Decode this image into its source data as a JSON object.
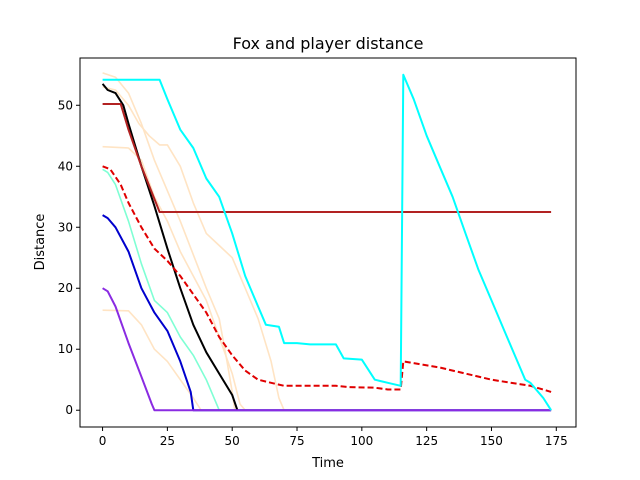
{
  "chart_data": {
    "type": "line",
    "title": "Fox and player distance",
    "xlabel": "Time",
    "ylabel": "Distance",
    "xlim": [
      -8.7,
      182.6
    ],
    "ylim": [
      -2.75,
      57.75
    ],
    "xticks": [
      0,
      25,
      50,
      75,
      100,
      125,
      150,
      175
    ],
    "yticks": [
      0,
      10,
      20,
      30,
      40,
      50
    ],
    "grid": false,
    "legend": "none",
    "series": [
      {
        "name": "bisque-1",
        "color": "#ffe4c4",
        "style": "solid",
        "points": [
          [
            0,
            55.3
          ],
          [
            5,
            54.6
          ],
          [
            10,
            52
          ],
          [
            15,
            47
          ],
          [
            20,
            41
          ],
          [
            30,
            31
          ],
          [
            40,
            20
          ],
          [
            45,
            15
          ],
          [
            48,
            8
          ],
          [
            50,
            3
          ],
          [
            51,
            0
          ],
          [
            173,
            0
          ]
        ]
      },
      {
        "name": "bisque-2",
        "color": "#ffe4c4",
        "style": "solid",
        "points": [
          [
            0,
            53
          ],
          [
            5,
            52.5
          ],
          [
            10,
            50
          ],
          [
            14,
            47
          ],
          [
            18,
            45
          ],
          [
            22,
            43.5
          ],
          [
            25,
            43.5
          ],
          [
            30,
            40
          ],
          [
            35,
            34
          ],
          [
            40,
            29
          ],
          [
            45,
            27
          ],
          [
            50,
            25
          ],
          [
            55,
            20
          ],
          [
            60,
            15
          ],
          [
            65,
            8
          ],
          [
            68,
            2
          ],
          [
            70,
            0
          ],
          [
            173,
            0
          ]
        ]
      },
      {
        "name": "bisque-3",
        "color": "#ffe4c4",
        "style": "solid",
        "points": [
          [
            0,
            43.2
          ],
          [
            10,
            43
          ],
          [
            15,
            41
          ],
          [
            20,
            35
          ],
          [
            25,
            31
          ],
          [
            30,
            26
          ],
          [
            35,
            22
          ],
          [
            40,
            18
          ],
          [
            45,
            12
          ],
          [
            50,
            6
          ],
          [
            53,
            1
          ],
          [
            55,
            0
          ],
          [
            173,
            0
          ]
        ]
      },
      {
        "name": "bisque-4",
        "color": "#ffe4c4",
        "style": "solid",
        "points": [
          [
            0,
            16.4
          ],
          [
            10,
            16.3
          ],
          [
            15,
            14
          ],
          [
            20,
            10
          ],
          [
            25,
            8
          ],
          [
            30,
            5
          ],
          [
            35,
            2
          ],
          [
            38,
            0
          ],
          [
            173,
            0
          ]
        ]
      },
      {
        "name": "aquamarine",
        "color": "#7fffd4",
        "style": "solid",
        "points": [
          [
            0,
            39.5
          ],
          [
            2,
            39
          ],
          [
            5,
            37
          ],
          [
            10,
            31
          ],
          [
            15,
            24
          ],
          [
            20,
            18
          ],
          [
            25,
            16
          ],
          [
            30,
            12
          ],
          [
            35,
            9
          ],
          [
            40,
            5
          ],
          [
            45,
            0
          ],
          [
            173,
            0
          ]
        ]
      },
      {
        "name": "blue",
        "color": "#0000cd",
        "style": "solid",
        "points": [
          [
            0,
            32
          ],
          [
            2,
            31.5
          ],
          [
            5,
            30
          ],
          [
            10,
            26
          ],
          [
            15,
            20
          ],
          [
            20,
            16
          ],
          [
            25,
            13
          ],
          [
            30,
            8
          ],
          [
            34,
            3
          ],
          [
            35,
            0
          ],
          [
            173,
            0
          ]
        ]
      },
      {
        "name": "black",
        "color": "#000000",
        "style": "solid",
        "points": [
          [
            0,
            53.5
          ],
          [
            2,
            52.5
          ],
          [
            5,
            52
          ],
          [
            8,
            50
          ],
          [
            10,
            47
          ],
          [
            15,
            40
          ],
          [
            20,
            33.5
          ],
          [
            25,
            26.5
          ],
          [
            30,
            20
          ],
          [
            35,
            14
          ],
          [
            40,
            9.5
          ],
          [
            45,
            6
          ],
          [
            50,
            2.5
          ],
          [
            52,
            0
          ]
        ]
      },
      {
        "name": "purple",
        "color": "#8a2be2",
        "style": "solid",
        "points": [
          [
            0,
            20
          ],
          [
            2,
            19.5
          ],
          [
            5,
            17
          ],
          [
            10,
            11
          ],
          [
            15,
            5.5
          ],
          [
            19,
            1
          ],
          [
            20,
            0
          ],
          [
            173,
            0
          ]
        ]
      },
      {
        "name": "firebrick",
        "color": "#b22222",
        "style": "solid",
        "points": [
          [
            0,
            50.2
          ],
          [
            7,
            50.2
          ],
          [
            10,
            46
          ],
          [
            15,
            40
          ],
          [
            22,
            32.5
          ],
          [
            173,
            32.5
          ]
        ]
      },
      {
        "name": "red-dashed",
        "color": "#e00000",
        "style": "dashed",
        "points": [
          [
            0,
            40
          ],
          [
            3,
            39.5
          ],
          [
            7,
            37
          ],
          [
            10,
            34
          ],
          [
            15,
            30
          ],
          [
            20,
            26.5
          ],
          [
            25,
            24.5
          ],
          [
            30,
            22
          ],
          [
            35,
            19
          ],
          [
            40,
            16
          ],
          [
            45,
            12
          ],
          [
            50,
            9
          ],
          [
            55,
            6.5
          ],
          [
            60,
            5
          ],
          [
            65,
            4.5
          ],
          [
            70,
            4
          ],
          [
            90,
            4
          ],
          [
            95,
            3.8
          ],
          [
            105,
            3.7
          ],
          [
            110,
            3.4
          ],
          [
            115,
            3.4
          ],
          [
            116,
            8
          ],
          [
            130,
            7
          ],
          [
            150,
            5
          ],
          [
            165,
            4
          ],
          [
            173,
            3
          ]
        ]
      },
      {
        "name": "cyan",
        "color": "#00ffff",
        "style": "solid",
        "points": [
          [
            0,
            54.2
          ],
          [
            22,
            54.2
          ],
          [
            25,
            51
          ],
          [
            30,
            46
          ],
          [
            35,
            43
          ],
          [
            40,
            38
          ],
          [
            45,
            35
          ],
          [
            50,
            29
          ],
          [
            55,
            22
          ],
          [
            60,
            17
          ],
          [
            63,
            14
          ],
          [
            68,
            13.7
          ],
          [
            70,
            11
          ],
          [
            75,
            11
          ],
          [
            80,
            10.8
          ],
          [
            90,
            10.8
          ],
          [
            93,
            8.5
          ],
          [
            100,
            8.3
          ],
          [
            105,
            5
          ],
          [
            110,
            4.5
          ],
          [
            115,
            4
          ],
          [
            116,
            55
          ],
          [
            117,
            54
          ],
          [
            120,
            51
          ],
          [
            125,
            45
          ],
          [
            130,
            40
          ],
          [
            135,
            35
          ],
          [
            140,
            29
          ],
          [
            145,
            23
          ],
          [
            150,
            18
          ],
          [
            155,
            13
          ],
          [
            160,
            8
          ],
          [
            163,
            5
          ],
          [
            165,
            4.5
          ],
          [
            170,
            2
          ],
          [
            173,
            0
          ]
        ]
      }
    ]
  }
}
